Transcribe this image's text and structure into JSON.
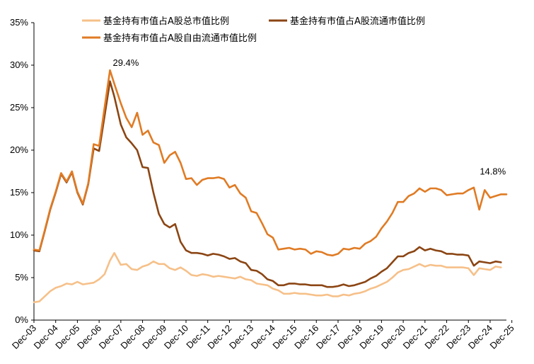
{
  "chart_data": {
    "type": "line",
    "title": "",
    "xlabel": "",
    "ylabel": "",
    "ylim": [
      0,
      35
    ],
    "y_ticks": [
      "0%",
      "5%",
      "10%",
      "15%",
      "20%",
      "25%",
      "30%",
      "35%"
    ],
    "x_ticks": [
      "Dec-03",
      "Dec-04",
      "Dec-05",
      "Dec-06",
      "Dec-07",
      "Dec-08",
      "Dec-09",
      "Dec-10",
      "Dec-11",
      "Dec-12",
      "Dec-13",
      "Dec-14",
      "Dec-15",
      "Dec-16",
      "Dec-17",
      "Dec-18",
      "Dec-19",
      "Dec-20",
      "Dec-21",
      "Dec-22",
      "Dec-23",
      "Dec-24",
      "Dec-25"
    ],
    "x_label_rotation": -45,
    "grid": false,
    "legend_position": "top",
    "series": [
      {
        "name": "基金持有市值占A股总市值比例",
        "color": "#F6C089",
        "points": [
          [
            2003.92,
            2.1
          ],
          [
            2004.17,
            2.2
          ],
          [
            2004.42,
            2.8
          ],
          [
            2004.67,
            3.4
          ],
          [
            2004.92,
            3.8
          ],
          [
            2005.17,
            4.0
          ],
          [
            2005.42,
            4.3
          ],
          [
            2005.67,
            4.2
          ],
          [
            2005.92,
            4.5
          ],
          [
            2006.17,
            4.2
          ],
          [
            2006.42,
            4.3
          ],
          [
            2006.67,
            4.4
          ],
          [
            2006.92,
            4.8
          ],
          [
            2007.17,
            5.4
          ],
          [
            2007.42,
            7.0
          ],
          [
            2007.62,
            7.9
          ],
          [
            2007.92,
            6.5
          ],
          [
            2008.17,
            6.6
          ],
          [
            2008.42,
            6.0
          ],
          [
            2008.67,
            5.9
          ],
          [
            2008.92,
            6.3
          ],
          [
            2009.17,
            6.5
          ],
          [
            2009.42,
            6.9
          ],
          [
            2009.67,
            6.6
          ],
          [
            2009.92,
            6.6
          ],
          [
            2010.17,
            6.1
          ],
          [
            2010.42,
            5.9
          ],
          [
            2010.67,
            6.2
          ],
          [
            2010.92,
            5.8
          ],
          [
            2011.17,
            5.3
          ],
          [
            2011.42,
            5.2
          ],
          [
            2011.67,
            5.4
          ],
          [
            2011.92,
            5.3
          ],
          [
            2012.17,
            5.1
          ],
          [
            2012.42,
            5.2
          ],
          [
            2012.67,
            5.1
          ],
          [
            2012.92,
            5.0
          ],
          [
            2013.17,
            4.9
          ],
          [
            2013.42,
            5.1
          ],
          [
            2013.67,
            4.8
          ],
          [
            2013.92,
            4.7
          ],
          [
            2014.17,
            4.3
          ],
          [
            2014.42,
            4.2
          ],
          [
            2014.67,
            4.1
          ],
          [
            2014.92,
            3.7
          ],
          [
            2015.17,
            3.5
          ],
          [
            2015.42,
            3.1
          ],
          [
            2015.67,
            3.1
          ],
          [
            2015.92,
            3.2
          ],
          [
            2016.17,
            3.1
          ],
          [
            2016.42,
            3.1
          ],
          [
            2016.67,
            3.0
          ],
          [
            2016.92,
            2.9
          ],
          [
            2017.17,
            2.9
          ],
          [
            2017.42,
            3.0
          ],
          [
            2017.67,
            2.8
          ],
          [
            2017.92,
            2.8
          ],
          [
            2018.17,
            3.0
          ],
          [
            2018.42,
            2.9
          ],
          [
            2018.67,
            3.1
          ],
          [
            2018.92,
            3.2
          ],
          [
            2019.17,
            3.4
          ],
          [
            2019.42,
            3.7
          ],
          [
            2019.67,
            3.9
          ],
          [
            2019.92,
            4.2
          ],
          [
            2020.17,
            4.5
          ],
          [
            2020.42,
            5.0
          ],
          [
            2020.67,
            5.6
          ],
          [
            2020.92,
            5.9
          ],
          [
            2021.17,
            6.0
          ],
          [
            2021.42,
            6.3
          ],
          [
            2021.67,
            6.6
          ],
          [
            2021.92,
            6.3
          ],
          [
            2022.17,
            6.5
          ],
          [
            2022.42,
            6.4
          ],
          [
            2022.67,
            6.4
          ],
          [
            2022.92,
            6.2
          ],
          [
            2023.17,
            6.2
          ],
          [
            2023.42,
            6.2
          ],
          [
            2023.67,
            6.2
          ],
          [
            2023.92,
            6.1
          ],
          [
            2024.17,
            5.3
          ],
          [
            2024.42,
            6.1
          ],
          [
            2024.67,
            6.0
          ],
          [
            2024.92,
            5.9
          ],
          [
            2025.17,
            6.3
          ],
          [
            2025.42,
            6.2
          ]
        ]
      },
      {
        "name": "基金持有市值占A股流通市值比例",
        "color": "#8B4513",
        "points": [
          [
            2003.92,
            8.2
          ],
          [
            2004.17,
            8.1
          ],
          [
            2004.42,
            10.5
          ],
          [
            2004.67,
            13.0
          ],
          [
            2004.92,
            15.0
          ],
          [
            2005.17,
            17.2
          ],
          [
            2005.42,
            16.2
          ],
          [
            2005.67,
            17.4
          ],
          [
            2005.92,
            15.0
          ],
          [
            2006.17,
            13.6
          ],
          [
            2006.42,
            16.0
          ],
          [
            2006.67,
            20.2
          ],
          [
            2006.92,
            19.9
          ],
          [
            2007.17,
            24.0
          ],
          [
            2007.42,
            28.1
          ],
          [
            2007.62,
            26.3
          ],
          [
            2007.92,
            23.0
          ],
          [
            2008.17,
            21.5
          ],
          [
            2008.42,
            20.8
          ],
          [
            2008.67,
            20.0
          ],
          [
            2008.92,
            18.0
          ],
          [
            2009.17,
            17.9
          ],
          [
            2009.42,
            15.0
          ],
          [
            2009.67,
            12.5
          ],
          [
            2009.92,
            11.3
          ],
          [
            2010.17,
            10.9
          ],
          [
            2010.42,
            11.3
          ],
          [
            2010.67,
            9.2
          ],
          [
            2010.92,
            8.2
          ],
          [
            2011.17,
            7.9
          ],
          [
            2011.42,
            7.9
          ],
          [
            2011.67,
            7.8
          ],
          [
            2011.92,
            7.6
          ],
          [
            2012.17,
            7.8
          ],
          [
            2012.42,
            7.7
          ],
          [
            2012.67,
            7.5
          ],
          [
            2012.92,
            7.2
          ],
          [
            2013.17,
            7.3
          ],
          [
            2013.42,
            6.9
          ],
          [
            2013.67,
            6.7
          ],
          [
            2013.92,
            5.9
          ],
          [
            2014.17,
            5.8
          ],
          [
            2014.42,
            5.4
          ],
          [
            2014.67,
            4.8
          ],
          [
            2014.92,
            4.6
          ],
          [
            2015.17,
            4.1
          ],
          [
            2015.42,
            4.1
          ],
          [
            2015.67,
            4.3
          ],
          [
            2015.92,
            4.3
          ],
          [
            2016.17,
            4.2
          ],
          [
            2016.42,
            4.2
          ],
          [
            2016.67,
            4.1
          ],
          [
            2016.92,
            4.1
          ],
          [
            2017.17,
            4.1
          ],
          [
            2017.42,
            3.9
          ],
          [
            2017.67,
            3.9
          ],
          [
            2017.92,
            4.0
          ],
          [
            2018.17,
            4.2
          ],
          [
            2018.42,
            4.0
          ],
          [
            2018.67,
            4.1
          ],
          [
            2018.92,
            4.3
          ],
          [
            2019.17,
            4.5
          ],
          [
            2019.42,
            4.9
          ],
          [
            2019.67,
            5.2
          ],
          [
            2019.92,
            5.7
          ],
          [
            2020.17,
            6.1
          ],
          [
            2020.42,
            6.8
          ],
          [
            2020.67,
            7.5
          ],
          [
            2020.92,
            7.5
          ],
          [
            2021.17,
            7.9
          ],
          [
            2021.42,
            8.1
          ],
          [
            2021.67,
            8.6
          ],
          [
            2021.92,
            8.2
          ],
          [
            2022.17,
            8.4
          ],
          [
            2022.42,
            8.2
          ],
          [
            2022.67,
            8.1
          ],
          [
            2022.92,
            7.8
          ],
          [
            2023.17,
            7.8
          ],
          [
            2023.42,
            7.7
          ],
          [
            2023.67,
            7.7
          ],
          [
            2023.92,
            7.6
          ],
          [
            2024.17,
            6.4
          ],
          [
            2024.42,
            6.9
          ],
          [
            2024.67,
            6.8
          ],
          [
            2024.92,
            6.7
          ],
          [
            2025.17,
            6.9
          ],
          [
            2025.42,
            6.8
          ]
        ]
      },
      {
        "name": "基金持有市值占A股自由流通市值比例",
        "color": "#E07B24",
        "points": [
          [
            2003.92,
            8.3
          ],
          [
            2004.17,
            8.2
          ],
          [
            2004.42,
            10.6
          ],
          [
            2004.67,
            13.1
          ],
          [
            2004.92,
            15.1
          ],
          [
            2005.17,
            17.3
          ],
          [
            2005.42,
            16.3
          ],
          [
            2005.67,
            17.5
          ],
          [
            2005.92,
            15.1
          ],
          [
            2006.17,
            13.7
          ],
          [
            2006.42,
            16.1
          ],
          [
            2006.67,
            20.7
          ],
          [
            2006.92,
            20.5
          ],
          [
            2007.17,
            25.0
          ],
          [
            2007.42,
            29.4
          ],
          [
            2007.62,
            27.8
          ],
          [
            2007.92,
            25.5
          ],
          [
            2008.17,
            23.8
          ],
          [
            2008.42,
            22.7
          ],
          [
            2008.67,
            24.4
          ],
          [
            2008.92,
            21.8
          ],
          [
            2009.17,
            22.3
          ],
          [
            2009.42,
            20.9
          ],
          [
            2009.67,
            20.6
          ],
          [
            2009.92,
            18.5
          ],
          [
            2010.17,
            19.4
          ],
          [
            2010.42,
            19.8
          ],
          [
            2010.67,
            18.5
          ],
          [
            2010.92,
            16.6
          ],
          [
            2011.17,
            16.7
          ],
          [
            2011.42,
            15.9
          ],
          [
            2011.67,
            16.5
          ],
          [
            2011.92,
            16.7
          ],
          [
            2012.17,
            16.7
          ],
          [
            2012.42,
            16.8
          ],
          [
            2012.67,
            16.6
          ],
          [
            2012.92,
            15.6
          ],
          [
            2013.17,
            15.9
          ],
          [
            2013.42,
            14.9
          ],
          [
            2013.67,
            14.4
          ],
          [
            2013.92,
            12.8
          ],
          [
            2014.17,
            12.6
          ],
          [
            2014.42,
            11.4
          ],
          [
            2014.67,
            10.1
          ],
          [
            2014.92,
            9.7
          ],
          [
            2015.17,
            8.3
          ],
          [
            2015.42,
            8.4
          ],
          [
            2015.67,
            8.5
          ],
          [
            2015.92,
            8.3
          ],
          [
            2016.17,
            8.4
          ],
          [
            2016.42,
            8.3
          ],
          [
            2016.67,
            7.8
          ],
          [
            2016.92,
            8.1
          ],
          [
            2017.17,
            8.0
          ],
          [
            2017.42,
            7.7
          ],
          [
            2017.67,
            7.6
          ],
          [
            2017.92,
            7.8
          ],
          [
            2018.17,
            8.4
          ],
          [
            2018.42,
            8.3
          ],
          [
            2018.67,
            8.5
          ],
          [
            2018.92,
            8.4
          ],
          [
            2019.17,
            9.0
          ],
          [
            2019.42,
            9.3
          ],
          [
            2019.67,
            9.8
          ],
          [
            2019.92,
            10.8
          ],
          [
            2020.17,
            11.6
          ],
          [
            2020.42,
            12.6
          ],
          [
            2020.67,
            13.9
          ],
          [
            2020.92,
            13.9
          ],
          [
            2021.17,
            14.6
          ],
          [
            2021.42,
            14.9
          ],
          [
            2021.67,
            15.5
          ],
          [
            2021.92,
            15.1
          ],
          [
            2022.17,
            15.5
          ],
          [
            2022.42,
            15.5
          ],
          [
            2022.67,
            15.3
          ],
          [
            2022.92,
            14.7
          ],
          [
            2023.17,
            14.8
          ],
          [
            2023.42,
            14.9
          ],
          [
            2023.67,
            14.9
          ],
          [
            2023.92,
            15.3
          ],
          [
            2024.17,
            15.6
          ],
          [
            2024.42,
            13.0
          ],
          [
            2024.67,
            15.3
          ],
          [
            2024.92,
            14.4
          ],
          [
            2025.17,
            14.6
          ],
          [
            2025.42,
            14.8
          ],
          [
            2025.67,
            14.8
          ]
        ]
      }
    ],
    "annotations": [
      {
        "text": "29.4%",
        "x": 2007.42,
        "y": 29.4
      },
      {
        "text": "14.8%",
        "x": 2025.42,
        "y": 14.8
      }
    ]
  }
}
